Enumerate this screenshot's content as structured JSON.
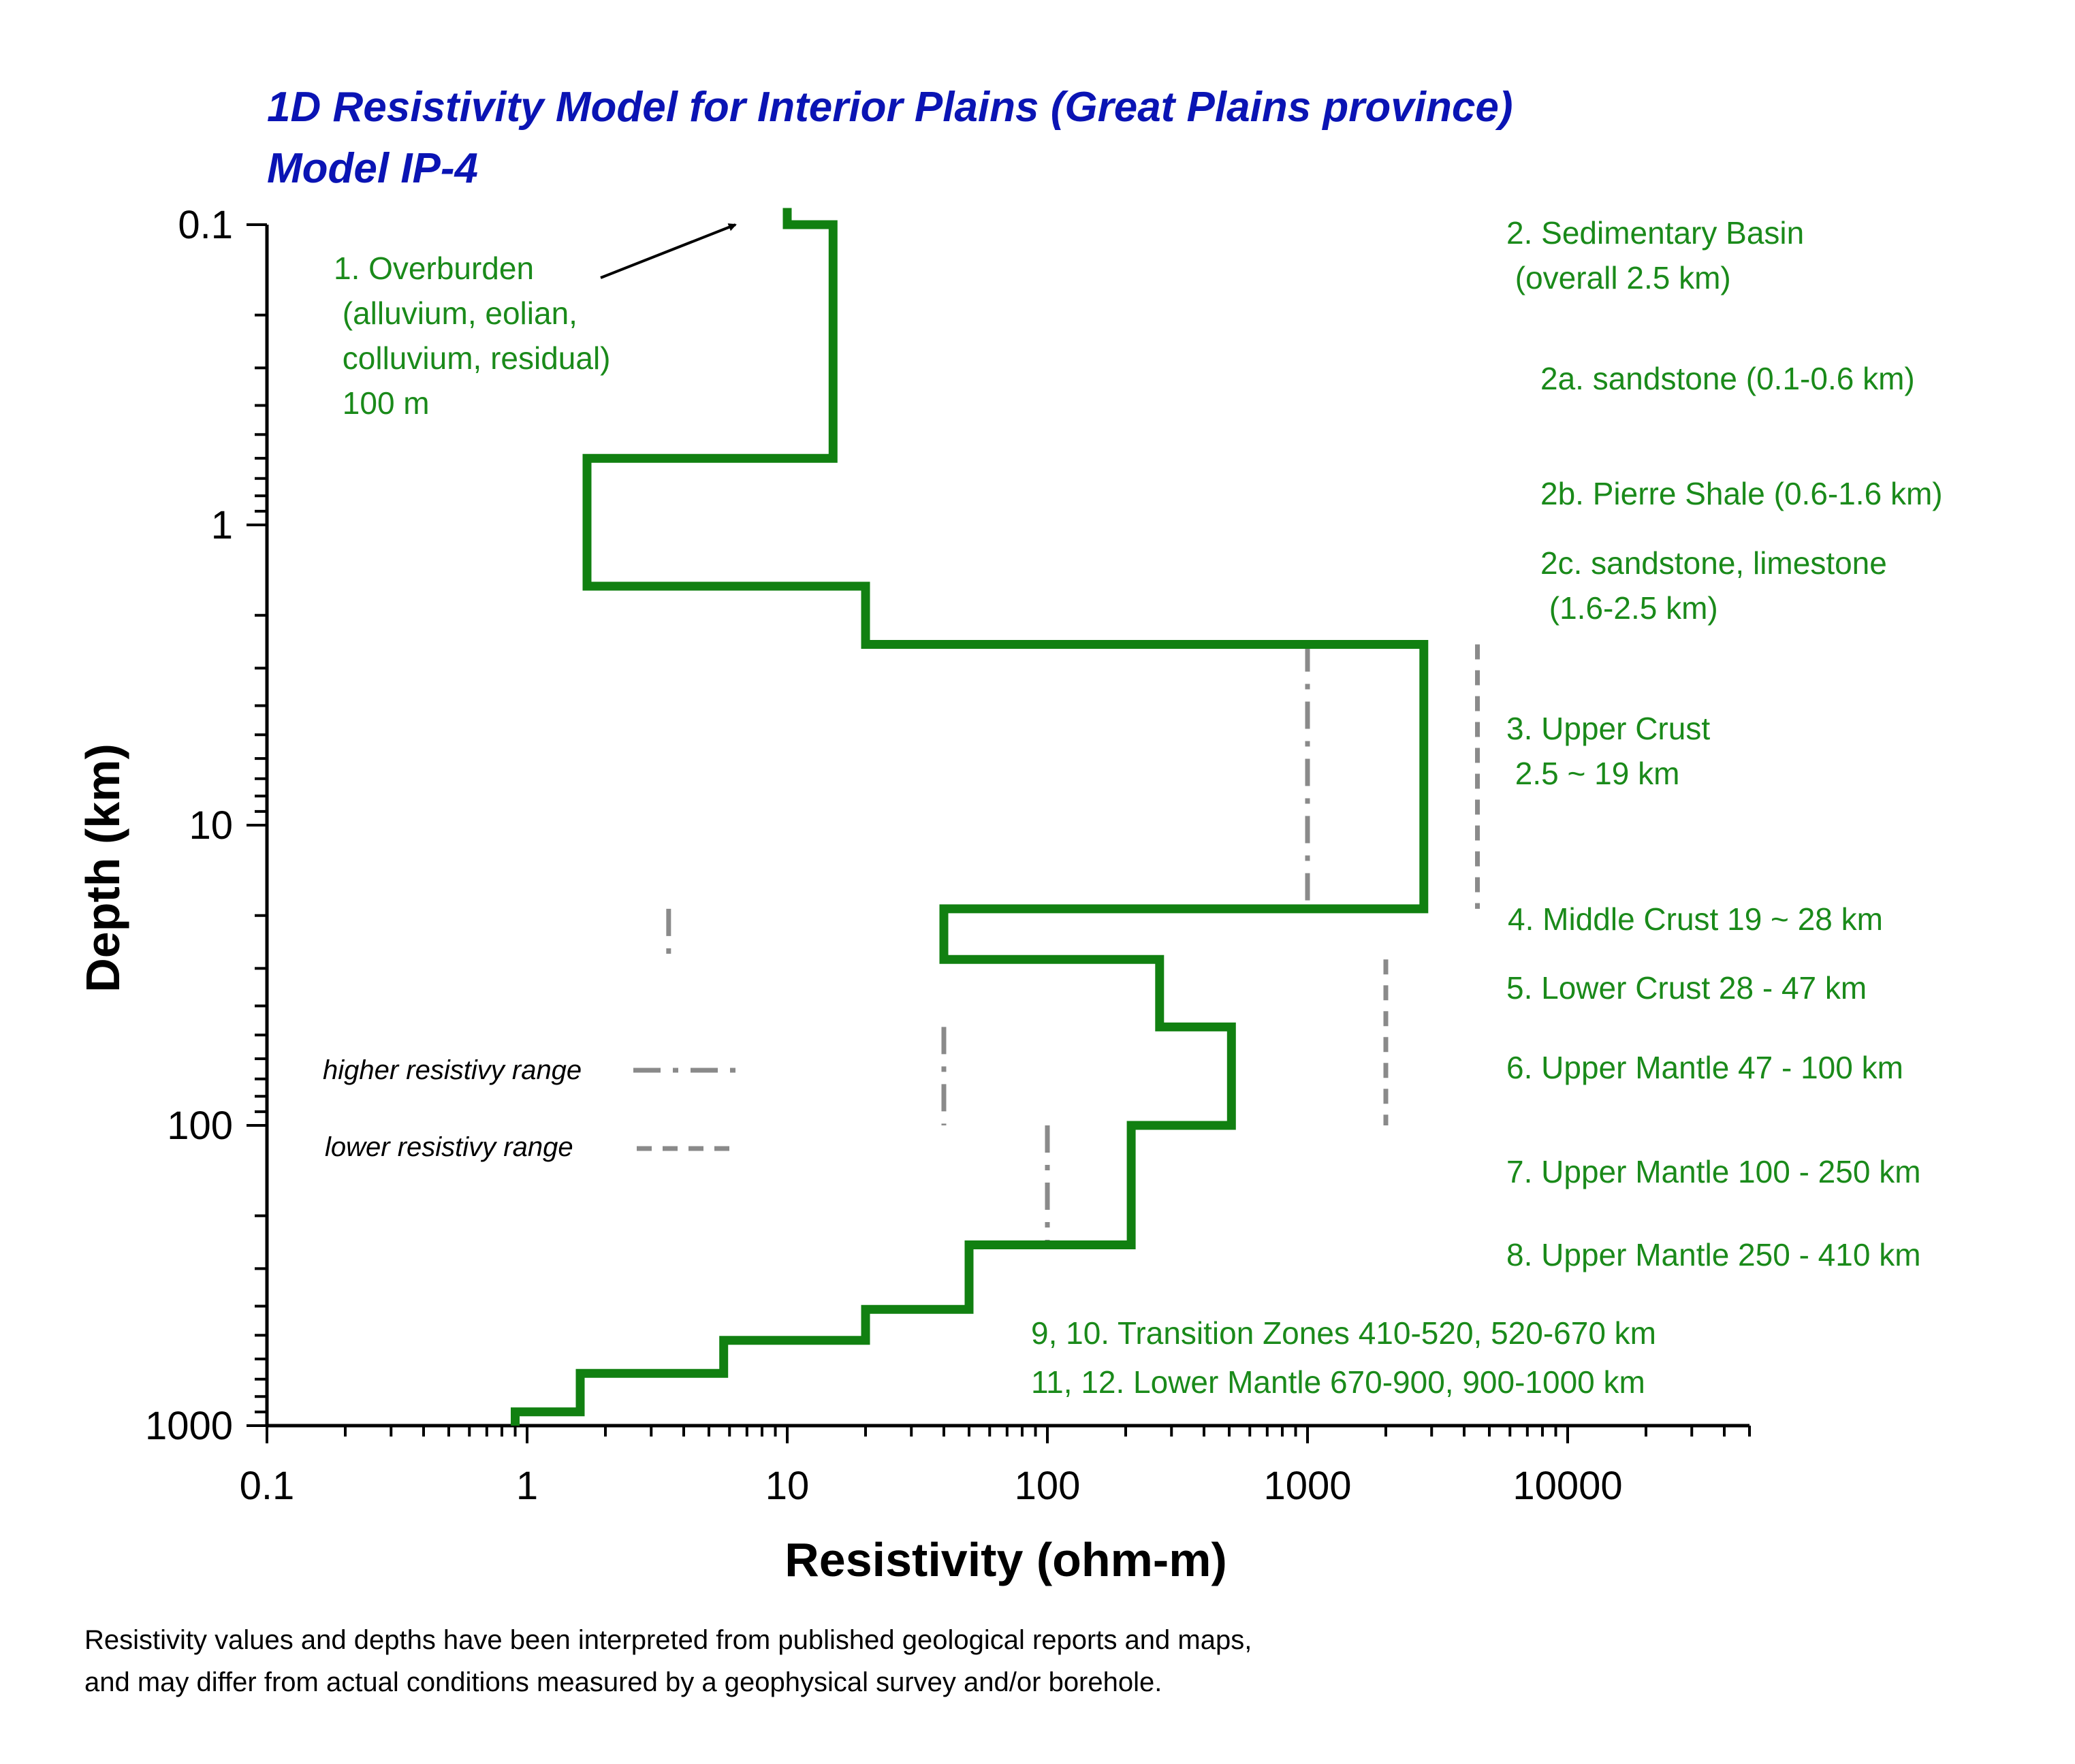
{
  "title_lines": [
    "1D Resistivity Model for Interior Plains  (Great Plains province)",
    "Model IP-4"
  ],
  "footnote_lines": [
    "Resistivity values and depths have been interpreted from published geological reports and maps,",
    " and may differ from actual conditions measured by a geophysical survey and/or borehole."
  ],
  "legend": {
    "higher": "higher resistivy range",
    "lower": "lower resistivy range"
  },
  "colors": {
    "model_line": "#118011",
    "range_line": "#8a8a8a",
    "annotation": "#1a8a1a",
    "title": "#0a14b4"
  },
  "annotations": [
    {
      "id": "overburden",
      "lines": [
        "1. Overburden",
        "    (alluvium, eolian,",
        "     colluvium, residual)",
        "    100 m"
      ]
    },
    {
      "id": "sed-basin",
      "lines": [
        "2. Sedimentary Basin",
        "   (overall 2.5 km)"
      ]
    },
    {
      "id": "2a",
      "lines": [
        "2a. sandstone (0.1-0.6 km)"
      ]
    },
    {
      "id": "2b",
      "lines": [
        "2b. Pierre Shale (0.6-1.6 km)"
      ]
    },
    {
      "id": "2c",
      "lines": [
        "2c. sandstone, limestone",
        "      (1.6-2.5 km)"
      ]
    },
    {
      "id": "upper-crust",
      "lines": [
        "3. Upper Crust",
        "    2.5 ~ 19 km"
      ]
    },
    {
      "id": "middle-crust",
      "lines": [
        "4. Middle Crust 19 ~ 28 km"
      ]
    },
    {
      "id": "lower-crust",
      "lines": [
        "5. Lower Crust 28 - 47 km"
      ]
    },
    {
      "id": "um6",
      "lines": [
        "6. Upper Mantle 47 - 100 km"
      ]
    },
    {
      "id": "um7",
      "lines": [
        "7. Upper Mantle 100 - 250 km"
      ]
    },
    {
      "id": "um8",
      "lines": [
        "8. Upper Mantle  250 - 410 km"
      ]
    },
    {
      "id": "tz",
      "lines": [
        "9, 10. Transition Zones 410-520, 520-670 km"
      ]
    },
    {
      "id": "lm",
      "lines": [
        "11, 12. Lower Mantle 670-900, 900-1000 km"
      ]
    }
  ],
  "chart_data": {
    "type": "line",
    "xlabel": "Resistivity (ohm-m)",
    "ylabel": "Depth (km)",
    "x_scale": "log",
    "y_scale": "log",
    "y_inverted": true,
    "xlim": [
      0.1,
      50000
    ],
    "ylim": [
      0.1,
      1000
    ],
    "x_tick_labels": [
      "0.1",
      "1",
      "10",
      "100",
      "1000",
      "10000"
    ],
    "x_ticks": [
      0.1,
      1,
      10,
      100,
      1000,
      10000
    ],
    "y_tick_labels": [
      "0.1",
      "1",
      "10",
      "100",
      "1000"
    ],
    "y_ticks": [
      0.1,
      1,
      10,
      100,
      1000
    ],
    "grid": false,
    "model_layers": [
      {
        "depth_top": 0.088,
        "depth_bottom": 0.1,
        "resistivity": 10
      },
      {
        "depth_top": 0.1,
        "depth_bottom": 0.6,
        "resistivity": 15
      },
      {
        "depth_top": 0.6,
        "depth_bottom": 1.6,
        "resistivity": 1.7
      },
      {
        "depth_top": 1.6,
        "depth_bottom": 2.5,
        "resistivity": 20
      },
      {
        "depth_top": 2.5,
        "depth_bottom": 19,
        "resistivity": 2800
      },
      {
        "depth_top": 19,
        "depth_bottom": 28,
        "resistivity": 40
      },
      {
        "depth_top": 28,
        "depth_bottom": 47,
        "resistivity": 270
      },
      {
        "depth_top": 47,
        "depth_bottom": 100,
        "resistivity": 510
      },
      {
        "depth_top": 100,
        "depth_bottom": 250,
        "resistivity": 210
      },
      {
        "depth_top": 250,
        "depth_bottom": 410,
        "resistivity": 50
      },
      {
        "depth_top": 410,
        "depth_bottom": 520,
        "resistivity": 20
      },
      {
        "depth_top": 520,
        "depth_bottom": 670,
        "resistivity": 5.7
      },
      {
        "depth_top": 670,
        "depth_bottom": 900,
        "resistivity": 1.6
      },
      {
        "depth_top": 900,
        "depth_bottom": 1000,
        "resistivity": 0.9
      }
    ],
    "range_lines": [
      {
        "kind": "higher",
        "resistivity": 1000,
        "depth_top": 2.5,
        "depth_bottom": 19
      },
      {
        "kind": "lower",
        "resistivity": 4500,
        "depth_top": 2.5,
        "depth_bottom": 19
      },
      {
        "kind": "higher",
        "resistivity": 3.5,
        "depth_top": 19,
        "depth_bottom": 28
      },
      {
        "kind": "lower",
        "resistivity": 2000,
        "depth_top": 28,
        "depth_bottom": 100
      },
      {
        "kind": "higher",
        "resistivity": 40,
        "depth_top": 47,
        "depth_bottom": 100
      },
      {
        "kind": "higher",
        "resistivity": 100,
        "depth_top": 100,
        "depth_bottom": 250
      }
    ]
  }
}
